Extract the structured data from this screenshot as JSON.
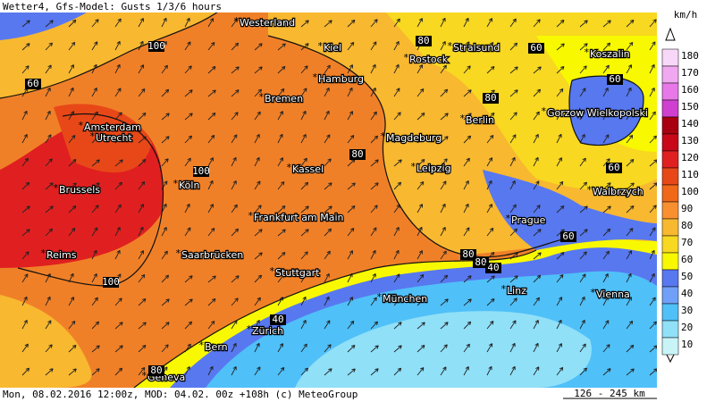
{
  "header": {
    "title": "Wetter4, Gfs-Model: Gusts 1/3/6 hours"
  },
  "footer": {
    "text": "Mon, 08.02.2016 12:00z, MOD: 04.02. 00z +108h (c) MeteoGroup",
    "scale": "126 - 245 km"
  },
  "legend": {
    "unit": "km/h",
    "levels": [
      {
        "value": 180,
        "color": "#f8d8f8"
      },
      {
        "value": 170,
        "color": "#f0a8f0"
      },
      {
        "value": 160,
        "color": "#e878e8"
      },
      {
        "value": 150,
        "color": "#d040d0"
      },
      {
        "value": 140,
        "color": "#a80010"
      },
      {
        "value": 130,
        "color": "#c80818"
      },
      {
        "value": 120,
        "color": "#e02020"
      },
      {
        "value": 110,
        "color": "#e84818"
      },
      {
        "value": 100,
        "color": "#f06818"
      },
      {
        "value": 90,
        "color": "#f89030"
      },
      {
        "value": 80,
        "color": "#f8b830"
      },
      {
        "value": 70,
        "color": "#f8d820"
      },
      {
        "value": 60,
        "color": "#f8f800"
      },
      {
        "value": 50,
        "color": "#5878f0"
      },
      {
        "value": 40,
        "color": "#70a0f8"
      },
      {
        "value": 30,
        "color": "#50c0f8"
      },
      {
        "value": 20,
        "color": "#90e0f8"
      },
      {
        "value": 10,
        "color": "#c8f4f8"
      }
    ]
  },
  "cities": [
    "Westerland",
    "Kiel",
    "Stralsund",
    "Koszalin",
    "Rostock",
    "Hamburg",
    "Bremen",
    "Berlin",
    "Gorzow Wielkopolski",
    "Amsterdam",
    "Utrecht",
    "Magdeburg",
    "Kassel",
    "Leipzig",
    "Köln",
    "Brussels",
    "Walbrzych",
    "Frankfurt am Main",
    "Prague",
    "Reims",
    "Saarbrücken",
    "Stuttgart",
    "Linz",
    "München",
    "Vienna",
    "Zürich",
    "Bern",
    "Geneva"
  ],
  "contour_labels": [
    "100",
    "60",
    "80",
    "60",
    "80",
    "60",
    "80",
    "100",
    "60",
    "100",
    "80",
    "80",
    "40",
    "60",
    "40",
    "80"
  ]
}
